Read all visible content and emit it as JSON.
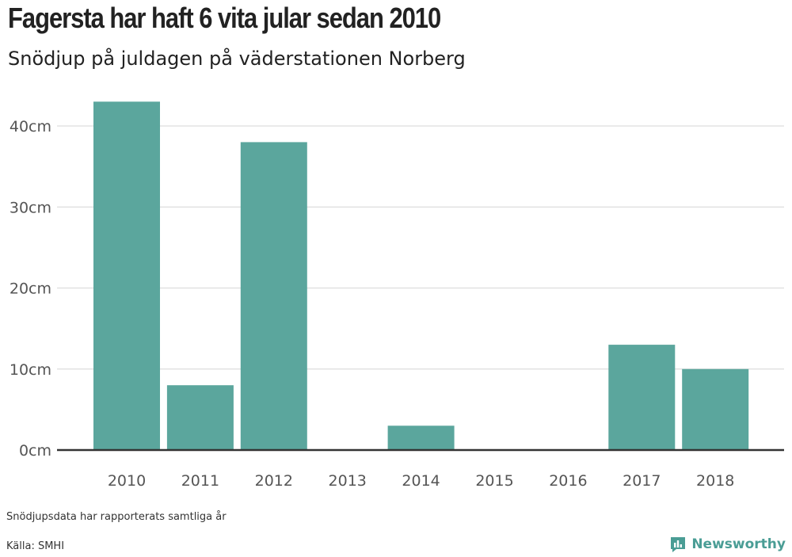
{
  "header": {
    "title": "Fagersta har haft 6 vita jular sedan 2010",
    "subtitle": "Snödjup på juldagen på väderstationen Norberg"
  },
  "footer": {
    "note": "Snödjupsdata har rapporterats samtliga år",
    "source": "Källa: SMHI",
    "brand": "Newsworthy",
    "brand_icon": "bar-chart-logo-icon"
  },
  "colors": {
    "bar": "#5ba69d",
    "grid": "#dddddd",
    "axis": "#333333",
    "brand": "#4a9d95"
  },
  "chart_data": {
    "type": "bar",
    "categories": [
      "2010",
      "2011",
      "2012",
      "2013",
      "2014",
      "2015",
      "2016",
      "2017",
      "2018"
    ],
    "values": [
      43,
      8,
      38,
      0,
      3,
      0,
      0,
      13,
      10
    ],
    "title": "Fagersta har haft 6 vita jular sedan 2010",
    "subtitle": "Snödjup på juldagen på väderstationen Norberg",
    "xlabel": "",
    "ylabel": "",
    "ylim": [
      0,
      40
    ],
    "yticks": [
      0,
      10,
      20,
      30,
      40
    ],
    "ytick_labels": [
      "0cm",
      "10cm",
      "20cm",
      "30cm",
      "40cm"
    ],
    "grid": true,
    "legend": "none"
  }
}
